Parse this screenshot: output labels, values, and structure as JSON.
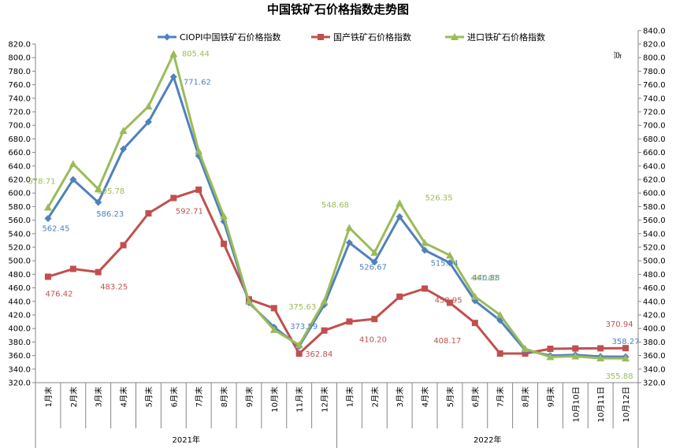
{
  "chart_data": {
    "type": "line",
    "title": "中国铁矿石价格指数走势图",
    "y2_unit": "点",
    "ylim": [
      320,
      820
    ],
    "y_step": 20,
    "y2lim": [
      320,
      840
    ],
    "y2_step": 20,
    "grid": false,
    "legend_position": "top",
    "categories": [
      "1月末",
      "2月末",
      "3月末",
      "4月末",
      "5月末",
      "6月末",
      "7月末",
      "8月末",
      "9月末",
      "10月末",
      "11月末",
      "12月末",
      "1月末",
      "2月末",
      "3月末",
      "4月末",
      "5月末",
      "6月末",
      "7月末",
      "8月末",
      "9月末",
      "10月10日",
      "10月11日",
      "10月12日"
    ],
    "groups": [
      {
        "label": "2021年",
        "start": 0,
        "end": 11
      },
      {
        "label": "2022年",
        "start": 12,
        "end": 23
      }
    ],
    "series": [
      {
        "name": "CIOPI中国铁矿石价格指数",
        "color": "#4F81BD",
        "marker": "diamond",
        "values": [
          562.45,
          620,
          586.23,
          665,
          705,
          771.62,
          655,
          558,
          438,
          402,
          373.59,
          435,
          526.67,
          498,
          565,
          515.64,
          497,
          440.88,
          412,
          368,
          360,
          361,
          358.5,
          358.27
        ]
      },
      {
        "name": "国产铁矿石价格指数",
        "color": "#C0504D",
        "marker": "square",
        "values": [
          476.42,
          488,
          483.25,
          523,
          570,
          592.71,
          605,
          525,
          443,
          430,
          362.84,
          397,
          410.2,
          414,
          447,
          458.95,
          438,
          408.17,
          363,
          363,
          370,
          370.5,
          370.7,
          370.94
        ]
      },
      {
        "name": "进口铁矿石价格指数",
        "color": "#9BBB59",
        "marker": "triangle",
        "values": [
          578.71,
          643,
          605.78,
          692,
          728,
          805.44,
          662,
          566,
          440,
          398,
          375.63,
          440,
          548.68,
          512,
          585,
          526.35,
          508,
          447.07,
          420,
          370,
          358,
          359,
          356,
          355.88
        ]
      }
    ],
    "data_labels": [
      {
        "series": 0,
        "index": 0,
        "text": "562.45"
      },
      {
        "series": 0,
        "index": 2,
        "text": "586.23"
      },
      {
        "series": 0,
        "index": 5,
        "text": "771.62"
      },
      {
        "series": 0,
        "index": 10,
        "text": "373.59"
      },
      {
        "series": 0,
        "index": 12,
        "text": "526.67"
      },
      {
        "series": 0,
        "index": 15,
        "text": "515.64"
      },
      {
        "series": 0,
        "index": 17,
        "text": "440.88"
      },
      {
        "series": 0,
        "index": 23,
        "text": "358.27"
      },
      {
        "series": 1,
        "index": 0,
        "text": "476.42"
      },
      {
        "series": 1,
        "index": 2,
        "text": "483.25"
      },
      {
        "series": 1,
        "index": 5,
        "text": "592.71"
      },
      {
        "series": 1,
        "index": 10,
        "text": "362.84"
      },
      {
        "series": 1,
        "index": 12,
        "text": "410.20"
      },
      {
        "series": 1,
        "index": 15,
        "text": "458.95"
      },
      {
        "series": 1,
        "index": 17,
        "text": "408.17"
      },
      {
        "series": 1,
        "index": 23,
        "text": "370.94"
      },
      {
        "series": 2,
        "index": 0,
        "text": "578.71"
      },
      {
        "series": 2,
        "index": 2,
        "text": "605.78"
      },
      {
        "series": 2,
        "index": 5,
        "text": "805.44"
      },
      {
        "series": 2,
        "index": 10,
        "text": "375.63"
      },
      {
        "series": 2,
        "index": 12,
        "text": "548.68"
      },
      {
        "series": 2,
        "index": 15,
        "text": "526.35"
      },
      {
        "series": 2,
        "index": 17,
        "text": "447.07"
      },
      {
        "series": 2,
        "index": 23,
        "text": "355.88"
      }
    ]
  }
}
